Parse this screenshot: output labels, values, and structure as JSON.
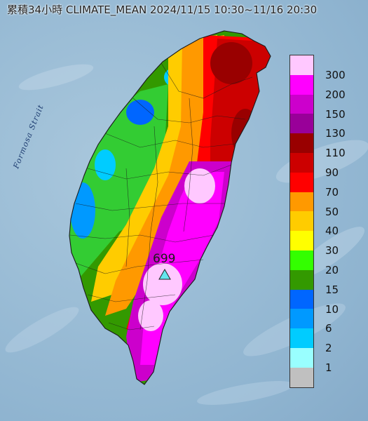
{
  "title": "累積34小時 CLIMATE_MEAN 2024/11/15 10:30~11/16 20:30",
  "strait_label": "Formosa Strait",
  "max_station": {
    "value": "699",
    "icon": "triangle-marker-icon",
    "color": "#64e6ee"
  },
  "legend": {
    "labels": [
      "300",
      "200",
      "150",
      "130",
      "110",
      "90",
      "70",
      "50",
      "40",
      "30",
      "20",
      "15",
      "10",
      "6",
      "2",
      "1"
    ],
    "colors": [
      "#ffc8ff",
      "#ff00ff",
      "#cc00cc",
      "#990099",
      "#990000",
      "#cc0000",
      "#ff0000",
      "#ff9900",
      "#ffcc00",
      "#ffff00",
      "#33ff00",
      "#339900",
      "#0066ff",
      "#0099ff",
      "#00ccff",
      "#99ffff",
      "#c0c0c0"
    ]
  }
}
